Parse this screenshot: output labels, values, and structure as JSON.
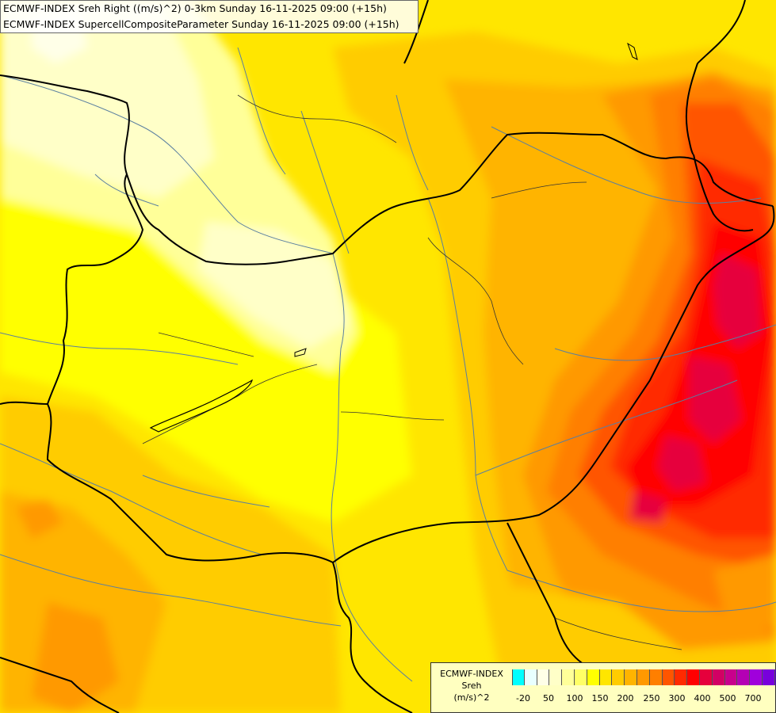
{
  "title": {
    "line1": "ECMWF-INDEX Sreh Right ((m/s)^2) 0-3km Sunday 16-11-2025 09:00 (+15h)",
    "line2": "ECMWF-INDEX SupercellCompositeParameter Sunday 16-11-2025 09:00 (+15h)"
  },
  "legend": {
    "line1": "ECMWF-INDEX",
    "line2": "Sreh",
    "line3": "(m/s)^2",
    "colors": [
      "#00ffff",
      "#e8ffff",
      "#ffffe8",
      "#ffffc8",
      "#ffff99",
      "#ffff66",
      "#ffff00",
      "#ffe600",
      "#ffcc00",
      "#ffb400",
      "#ff9900",
      "#ff7f00",
      "#ff5500",
      "#ff2a00",
      "#ff0000",
      "#e6003c",
      "#d20064",
      "#c8008c",
      "#b400b4",
      "#a000dc",
      "#7800dc",
      "#5000c8",
      "#2800a0",
      "#000078"
    ],
    "ticks": [
      "-20",
      "50",
      "100",
      "150",
      "200",
      "250",
      "300",
      "400",
      "500",
      "700"
    ]
  }
}
